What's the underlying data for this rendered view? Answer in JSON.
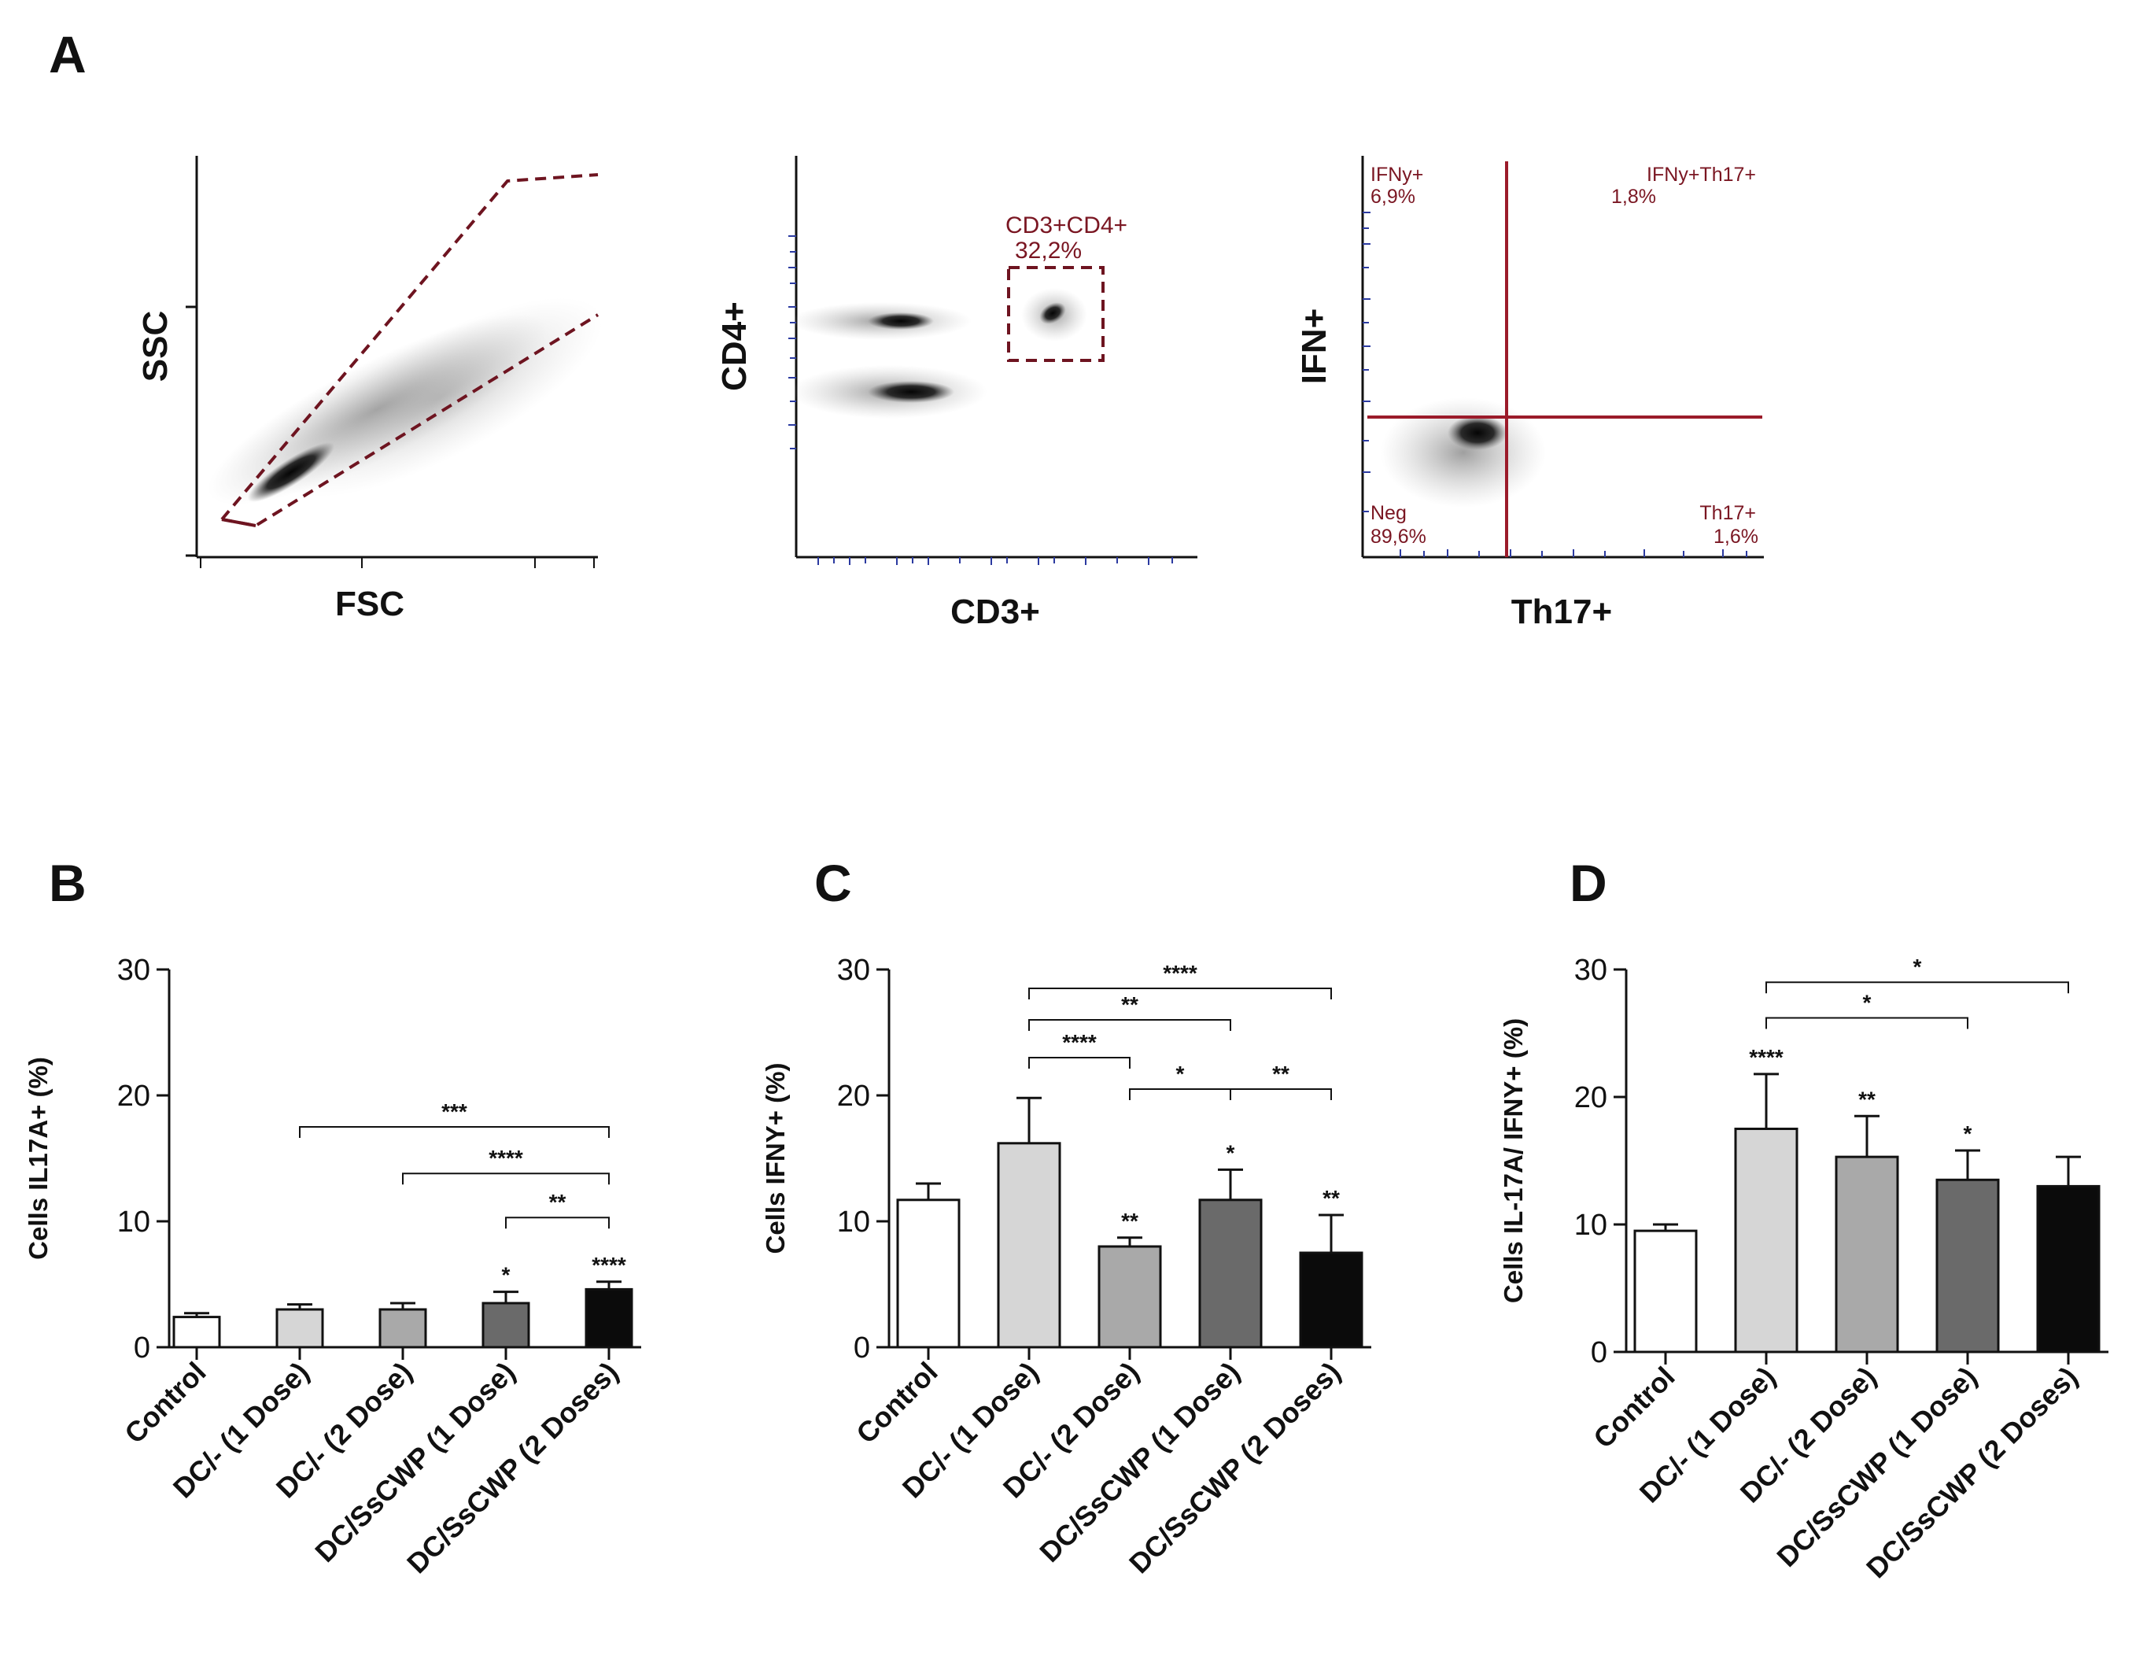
{
  "panels": {
    "a": {
      "letter": "A"
    },
    "b": {
      "letter": "B"
    },
    "c": {
      "letter": "C"
    },
    "d": {
      "letter": "D"
    }
  },
  "flow": {
    "fsc_ssc": {
      "xlabel": "FSC",
      "ylabel": "SSC"
    },
    "cd3_cd4": {
      "xlabel": "CD3+",
      "ylabel": "CD4+",
      "gate_name": "CD3+CD4+",
      "gate_pct": "32,2%"
    },
    "th17_ifn": {
      "xlabel": "Th17+",
      "ylabel": "IFN+",
      "q_ul_name": "IFNy+",
      "q_ul_pct": "6,9%",
      "q_ur_name": "IFNy+Th17+",
      "q_ur_pct": "1,8%",
      "q_ll_name": "Neg",
      "q_ll_pct": "89,6%",
      "q_lr_name": "Th17+",
      "q_lr_pct": "1,6%"
    }
  },
  "chart_data": [
    {
      "type": "bar",
      "panel": "B",
      "title": "",
      "xlabel": "",
      "ylabel": "Cells IL17A+ (%)",
      "ylim": [
        0,
        30
      ],
      "yticks": [
        "0",
        "10",
        "20",
        "30"
      ],
      "categories": [
        "Control",
        "DC/- (1 Dose)",
        "DC/- (2 Dose)",
        "DC/SsCWP (1 Dose)",
        "DC/SsCWP (2 Doses)"
      ],
      "values": [
        2.4,
        3.0,
        3.0,
        3.5,
        4.6
      ],
      "errors": [
        0.3,
        0.4,
        0.5,
        0.9,
        0.6
      ],
      "colors": [
        "#ffffff",
        "#d6d6d6",
        "#a9a9a9",
        "#6a6a6a",
        "#0b0b0b"
      ],
      "bar_marks": [
        "",
        "",
        "",
        "*",
        "****"
      ],
      "brackets": [
        {
          "from": 1,
          "to": 4,
          "y": 17.5,
          "label": "***"
        },
        {
          "from": 2,
          "to": 4,
          "y": 13.8,
          "label": "****"
        },
        {
          "from": 3,
          "to": 4,
          "y": 10.3,
          "label": "**"
        }
      ]
    },
    {
      "type": "bar",
      "panel": "C",
      "title": "",
      "xlabel": "",
      "ylabel": "Cells IFNY+ (%)",
      "ylim": [
        0,
        30
      ],
      "yticks": [
        "0",
        "10",
        "20",
        "30"
      ],
      "categories": [
        "Control",
        "DC/- (1 Dose)",
        "DC/- (2 Dose)",
        "DC/SsCWP (1 Dose)",
        "DC/SsCWP (2 Doses)"
      ],
      "values": [
        11.7,
        16.2,
        8.0,
        11.7,
        7.5
      ],
      "errors": [
        1.3,
        3.6,
        0.7,
        2.4,
        3.0
      ],
      "colors": [
        "#ffffff",
        "#d6d6d6",
        "#a9a9a9",
        "#6a6a6a",
        "#0b0b0b"
      ],
      "bar_marks": [
        "",
        "",
        "**",
        "*",
        "**"
      ],
      "brackets": [
        {
          "from": 1,
          "to": 4,
          "y": 28.5,
          "label": "****"
        },
        {
          "from": 1,
          "to": 3,
          "y": 26.0,
          "label": "**"
        },
        {
          "from": 1,
          "to": 2,
          "y": 23.0,
          "label": "****"
        },
        {
          "from": 2,
          "to": 3,
          "y": 20.5,
          "label": "*"
        },
        {
          "from": 3,
          "to": 4,
          "y": 20.5,
          "label": "**"
        }
      ]
    },
    {
      "type": "bar",
      "panel": "D",
      "title": "",
      "xlabel": "",
      "ylabel": "Cells IL-17A/ IFNY+ (%)",
      "ylim": [
        0,
        30
      ],
      "yticks": [
        "0",
        "10",
        "20",
        "30"
      ],
      "categories": [
        "Control",
        "DC/- (1 Dose)",
        "DC/- (2 Dose)",
        "DC/SsCWP (1 Dose)",
        "DC/SsCWP (2 Doses)"
      ],
      "values": [
        9.5,
        17.5,
        15.3,
        13.5,
        13.0
      ],
      "errors": [
        0.5,
        4.3,
        3.2,
        2.3,
        2.3
      ],
      "colors": [
        "#ffffff",
        "#d6d6d6",
        "#a9a9a9",
        "#6a6a6a",
        "#0b0b0b"
      ],
      "bar_marks": [
        "",
        "****",
        "**",
        "*",
        ""
      ],
      "brackets": [
        {
          "from": 1,
          "to": 4,
          "y": 29.0,
          "label": "*"
        },
        {
          "from": 1,
          "to": 3,
          "y": 26.2,
          "label": "*"
        }
      ]
    }
  ]
}
